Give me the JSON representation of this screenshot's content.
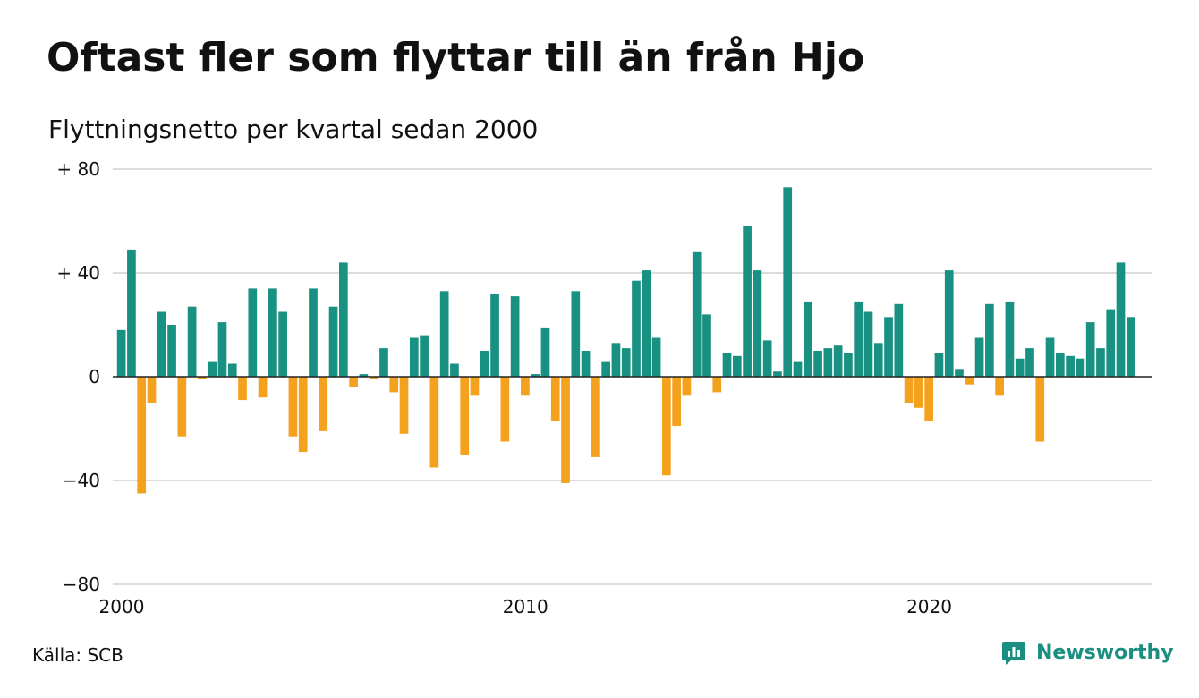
{
  "header": {
    "title": "Oftast fler som flyttar till än från Hjo",
    "subtitle": "Flyttningsnetto per kvartal sedan 2000"
  },
  "footer": {
    "source": "Källa: SCB",
    "brand": "Newsworthy"
  },
  "colors": {
    "positive": "#199182",
    "negative": "#f4a11d",
    "grid": "#dcdcdc",
    "baseline": "#222222",
    "brand": "#1a8f80"
  },
  "icons": {
    "brand_logo": "newsworthy-logo-icon"
  },
  "chart_data": {
    "type": "bar",
    "title": "Oftast fler som flyttar till än från Hjo",
    "subtitle": "Flyttningsnetto per kvartal sedan 2000",
    "xlabel": "",
    "ylabel": "",
    "ylim": [
      -80,
      80
    ],
    "xlim": [
      2000,
      2025.75
    ],
    "y_ticks": [
      {
        "value": 80,
        "label": "+ 80"
      },
      {
        "value": 40,
        "label": "+ 40"
      },
      {
        "value": 0,
        "label": "0"
      },
      {
        "value": -40,
        "label": "−40"
      },
      {
        "value": -80,
        "label": "−80"
      }
    ],
    "x_ticks": [
      {
        "value": 2000,
        "label": "2000"
      },
      {
        "value": 2010,
        "label": "2010"
      },
      {
        "value": 2020,
        "label": "2020"
      }
    ],
    "grid": true,
    "legend": "none",
    "series": [
      {
        "start_year": 2000,
        "periods_per_year": 4,
        "values": [
          18,
          49,
          -45,
          -10,
          25,
          20,
          -23,
          27,
          -1,
          6,
          21,
          5,
          -9,
          34,
          -8,
          34,
          25,
          -23,
          -29,
          34,
          -21,
          27,
          44,
          -4,
          1,
          -1,
          11,
          -6,
          -22,
          15,
          16,
          -35,
          33,
          5,
          -30,
          -7,
          10,
          32,
          -25,
          31,
          -7,
          1,
          19,
          -17,
          -41,
          33,
          10,
          -31,
          6,
          13,
          11,
          37,
          41,
          15,
          -38,
          -19,
          -7,
          48,
          24,
          -6,
          9,
          8,
          58,
          41,
          14,
          2,
          73,
          6,
          29,
          10,
          11,
          12,
          9,
          29,
          25,
          13,
          23,
          28,
          -10,
          -12,
          -17,
          9,
          41,
          3,
          -3,
          15,
          28,
          -7,
          29,
          7,
          11,
          -25,
          15,
          9,
          8,
          7,
          21,
          11,
          26,
          44,
          23
        ]
      }
    ]
  }
}
